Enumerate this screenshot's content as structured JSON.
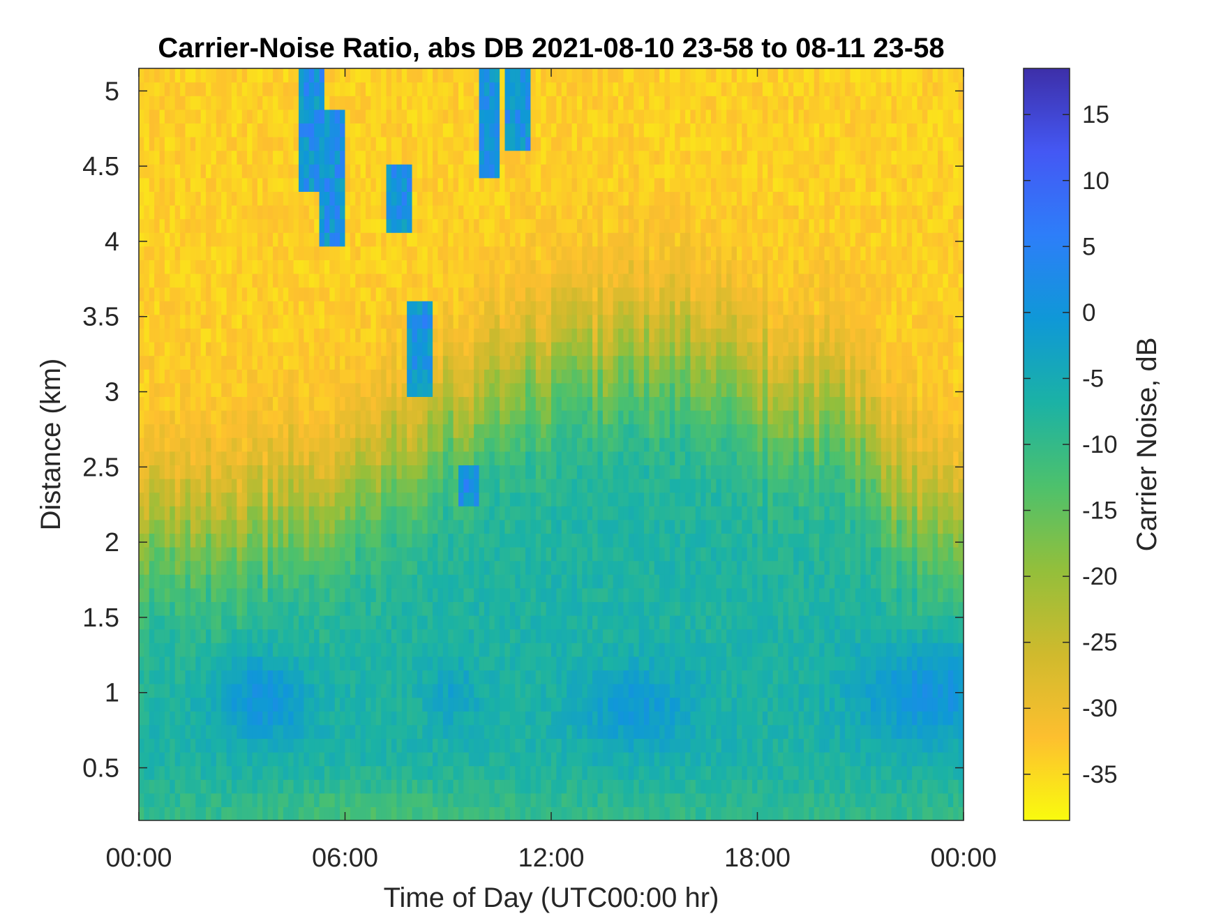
{
  "chart_data": {
    "type": "heatmap",
    "title": "Carrier-Noise Ratio, abs DB 2021-08-10 23-58 to 08-11 23-58",
    "xlabel": "Time of Day (UTC00:00 hr)",
    "ylabel": "Distance (km)",
    "colorbar_label": "Carrier Noise, dB",
    "x_ticks": [
      "00:00",
      "06:00",
      "12:00",
      "18:00",
      "00:00"
    ],
    "y_ticks": [
      "0.5",
      "1",
      "1.5",
      "2",
      "2.5",
      "3",
      "3.5",
      "4",
      "4.5",
      "5"
    ],
    "colorbar_ticks": [
      "15",
      "10",
      "5",
      "0",
      "-5",
      "-10",
      "-15",
      "-20",
      "-25",
      "-30",
      "-35"
    ],
    "xlim_hours": [
      0,
      24
    ],
    "ylim_km": [
      0.15,
      5.15
    ],
    "clim_db": [
      -38.5,
      18.5
    ],
    "colormap": "parula",
    "grid": false,
    "colormap_stops": [
      "#f9fb0e",
      "#fdbf2f",
      "#cfba2d",
      "#93bf3b",
      "#4dc16c",
      "#1bb2a5",
      "#0f98d7",
      "#2d7ef9",
      "#4458f4",
      "#3d2fa8"
    ],
    "features": [
      {
        "desc": "upper layer low CNR",
        "x_range_h": [
          0,
          24
        ],
        "y_range_km": [
          3.6,
          5.15
        ],
        "value_db": -34
      },
      {
        "desc": "boundary layer",
        "x_range_h": [
          0,
          24
        ],
        "y_range_km": [
          0.15,
          1.6
        ],
        "value_db": -7
      },
      {
        "desc": "enhanced band around 1 km",
        "x_range_h": [
          2,
          6
        ],
        "y_range_km": [
          0.8,
          1.4
        ],
        "value_db": 2
      },
      {
        "desc": "enhanced band late day",
        "x_range_h": [
          20,
          24
        ],
        "y_range_km": [
          0.7,
          1.4
        ],
        "value_db": 2
      },
      {
        "desc": "cloud streaks",
        "x_range_h": [
          4.5,
          12
        ],
        "y_range_km": [
          2.2,
          5.15
        ],
        "value_db": 3
      }
    ]
  }
}
